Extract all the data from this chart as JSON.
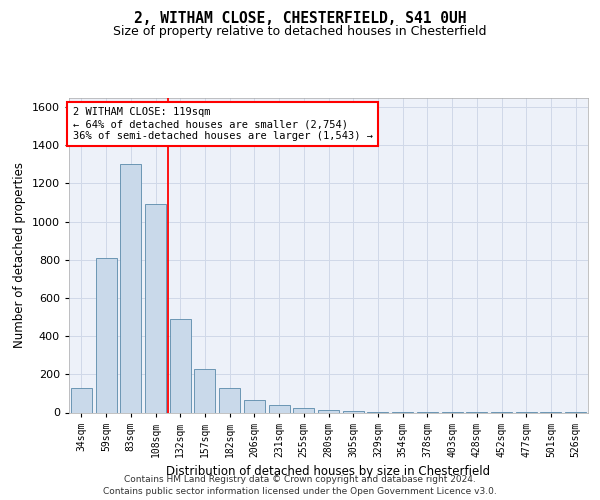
{
  "title_line1": "2, WITHAM CLOSE, CHESTERFIELD, S41 0UH",
  "title_line2": "Size of property relative to detached houses in Chesterfield",
  "xlabel": "Distribution of detached houses by size in Chesterfield",
  "ylabel": "Number of detached properties",
  "categories": [
    "34sqm",
    "59sqm",
    "83sqm",
    "108sqm",
    "132sqm",
    "157sqm",
    "182sqm",
    "206sqm",
    "231sqm",
    "255sqm",
    "280sqm",
    "305sqm",
    "329sqm",
    "354sqm",
    "378sqm",
    "403sqm",
    "428sqm",
    "452sqm",
    "477sqm",
    "501sqm",
    "526sqm"
  ],
  "values": [
    130,
    810,
    1300,
    1090,
    490,
    230,
    130,
    65,
    38,
    25,
    15,
    10,
    5,
    5,
    5,
    3,
    3,
    2,
    2,
    2,
    2
  ],
  "bar_color": "#c9d9ea",
  "bar_edgecolor": "#5a8aaa",
  "vline_position": 3.5,
  "vline_color": "red",
  "annotation_text": "2 WITHAM CLOSE: 119sqm\n← 64% of detached houses are smaller (2,754)\n36% of semi-detached houses are larger (1,543) →",
  "ylim_max": 1650,
  "yticks": [
    0,
    200,
    400,
    600,
    800,
    1000,
    1200,
    1400,
    1600
  ],
  "grid_color": "#d0d8e8",
  "background_color": "#edf1f9",
  "footer_line1": "Contains HM Land Registry data © Crown copyright and database right 2024.",
  "footer_line2": "Contains public sector information licensed under the Open Government Licence v3.0."
}
